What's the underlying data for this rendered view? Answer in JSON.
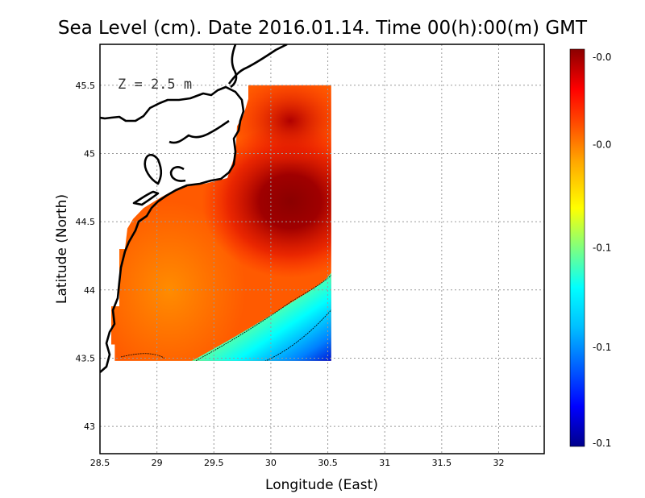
{
  "chart_data": {
    "type": "heatmap",
    "title": "Sea Level (cm). Date 2016.01.14. Time 00(h):00(m) GMT",
    "xlabel": "Longitude (East)",
    "ylabel": "Latitude (North)",
    "annotation": "Z = 2.5 m",
    "xlim": [
      28.5,
      32.4
    ],
    "ylim": [
      42.8,
      45.8
    ],
    "x_ticks": [
      "28.5",
      "29",
      "29.5",
      "30",
      "30.5",
      "31",
      "31.5",
      "32"
    ],
    "x_tick_values": [
      28.5,
      29,
      29.5,
      30,
      30.5,
      31,
      31.5,
      32
    ],
    "y_ticks": [
      "43",
      "43.5",
      "44",
      "44.5",
      "45",
      "45.5"
    ],
    "y_tick_values": [
      43,
      43.5,
      44,
      44.5,
      45,
      45.5
    ],
    "grid": true,
    "colorbar": {
      "placement": "right",
      "tick_labels": [
        "-0.0",
        "-0.0",
        "-0.1",
        "-0.1",
        "-0.1"
      ],
      "colormap": [
        "#00008b",
        "#0000ff",
        "#00bfff",
        "#00ffff",
        "#7fff7f",
        "#ffff00",
        "#ffa500",
        "#ff4500",
        "#ff0000",
        "#8b0000"
      ]
    },
    "field": {
      "lon_range": [
        28.63,
        30.53
      ],
      "lat_range": [
        43.48,
        45.5
      ],
      "peak_center": [
        30.2,
        44.65
      ],
      "low_corner": [
        30.53,
        43.48
      ]
    }
  }
}
